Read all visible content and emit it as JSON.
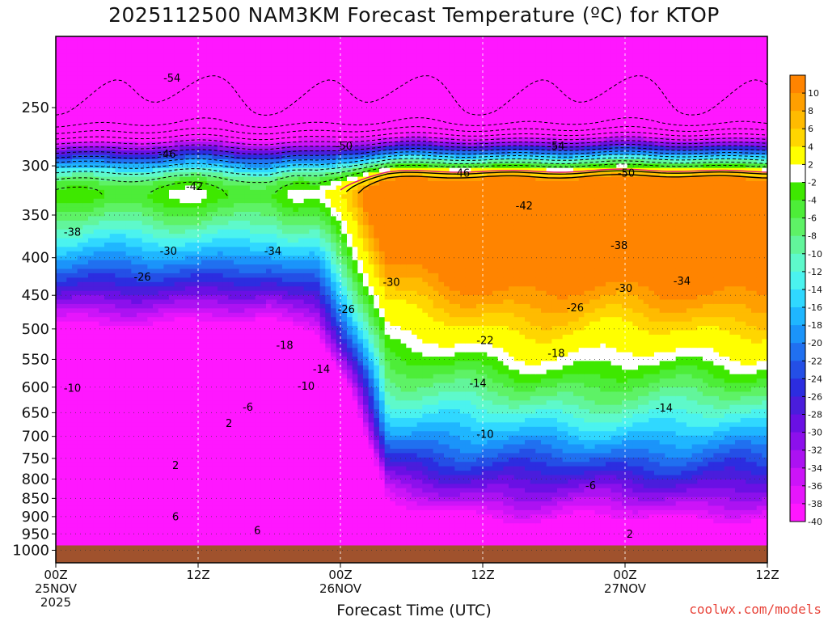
{
  "title": "2025112500 NAM3KM Forecast Temperature (ºC) for KTOP",
  "x_axis_title": "Forecast Time (UTC)",
  "credit": "coolwx.com/models",
  "chart_data": {
    "type": "heatmap",
    "title": "2025112500 NAM3KM Forecast Temperature (ºC) for KTOP",
    "xlabel": "Forecast Time (UTC)",
    "ylabel": "",
    "x_ticks": [
      {
        "label": "00Z",
        "sub": [
          "25NOV",
          "2025"
        ],
        "hour": 0
      },
      {
        "label": "12Z",
        "sub": [],
        "hour": 12
      },
      {
        "label": "00Z",
        "sub": [
          "26NOV"
        ],
        "hour": 24
      },
      {
        "label": "12Z",
        "sub": [],
        "hour": 36
      },
      {
        "label": "00Z",
        "sub": [
          "27NOV"
        ],
        "hour": 48
      },
      {
        "label": "12Z",
        "sub": [],
        "hour": 60
      }
    ],
    "xlim": [
      0,
      60
    ],
    "y_ticks": [
      250,
      300,
      350,
      400,
      450,
      500,
      550,
      600,
      650,
      700,
      750,
      800,
      850,
      900,
      950,
      1000
    ],
    "ylim_hPa": [
      1040,
      200
    ],
    "y_scale": "log-pressure",
    "colorbar_labels": [
      "10",
      "8",
      "6",
      "4",
      "2",
      "-2",
      "-4",
      "-6",
      "-8",
      "-10",
      "-12",
      "-14",
      "-16",
      "-18",
      "-20",
      "-22",
      "-24",
      "-26",
      "-28",
      "-30",
      "-32",
      "-34",
      "-36",
      "-38",
      "-40"
    ],
    "colorbar_colors": [
      "#ff8400",
      "#ff9f00",
      "#ffbb00",
      "#ffd600",
      "#ffff00",
      "#ffffff",
      "#3ee800",
      "#4ded38",
      "#5ef266",
      "#62f59b",
      "#5ef9cb",
      "#4bf3ef",
      "#30d8ff",
      "#1fb6ff",
      "#1b94fa",
      "#2070f0",
      "#244fe6",
      "#2c2de0",
      "#4a1ddc",
      "#6a10e4",
      "#8c10ec",
      "#ac12f2",
      "#cc14f8",
      "#e616fc",
      "#ff17ff"
    ],
    "ground_color": "#a0522d",
    "contour_labels": [
      {
        "v": "-54",
        "h": 9.8,
        "p": 228
      },
      {
        "v": "-54",
        "h": 42.2,
        "p": 282
      },
      {
        "v": "-50",
        "h": 24.3,
        "p": 282
      },
      {
        "v": "-50",
        "h": 48.1,
        "p": 307
      },
      {
        "v": "-46",
        "h": 9.4,
        "p": 289
      },
      {
        "v": "-46",
        "h": 34.2,
        "p": 307
      },
      {
        "v": "-42",
        "h": 11.7,
        "p": 320
      },
      {
        "v": "-42",
        "h": 39.5,
        "p": 340
      },
      {
        "v": "-38",
        "h": 1.4,
        "p": 369
      },
      {
        "v": "-38",
        "h": 47.5,
        "p": 385
      },
      {
        "v": "-34",
        "h": 18.3,
        "p": 392
      },
      {
        "v": "-34",
        "h": 52.8,
        "p": 430
      },
      {
        "v": "-30",
        "h": 9.5,
        "p": 392
      },
      {
        "v": "-30",
        "h": 28.3,
        "p": 432
      },
      {
        "v": "-30",
        "h": 47.9,
        "p": 440
      },
      {
        "v": "-26",
        "h": 7.3,
        "p": 425
      },
      {
        "v": "-26",
        "h": 24.5,
        "p": 470
      },
      {
        "v": "-26",
        "h": 43.8,
        "p": 468
      },
      {
        "v": "-22",
        "h": 36.2,
        "p": 518
      },
      {
        "v": "-18",
        "h": 19.3,
        "p": 526
      },
      {
        "v": "-18",
        "h": 42.2,
        "p": 540
      },
      {
        "v": "-14",
        "h": 22.4,
        "p": 567
      },
      {
        "v": "-14",
        "h": 35.6,
        "p": 593
      },
      {
        "v": "-14",
        "h": 51.3,
        "p": 640
      },
      {
        "v": "-10",
        "h": 1.4,
        "p": 602
      },
      {
        "v": "-10",
        "h": 21.1,
        "p": 598
      },
      {
        "v": "-10",
        "h": 36.2,
        "p": 695
      },
      {
        "v": "-6",
        "h": 16.2,
        "p": 639
      },
      {
        "v": "-6",
        "h": 45.1,
        "p": 817
      },
      {
        "v": "2",
        "h": 14.6,
        "p": 672
      },
      {
        "v": "2",
        "h": 10.1,
        "p": 766
      },
      {
        "v": "2",
        "h": 48.4,
        "p": 950
      },
      {
        "v": "6",
        "h": 10.1,
        "p": 900
      },
      {
        "v": "6",
        "h": 17.0,
        "p": 940
      }
    ]
  }
}
